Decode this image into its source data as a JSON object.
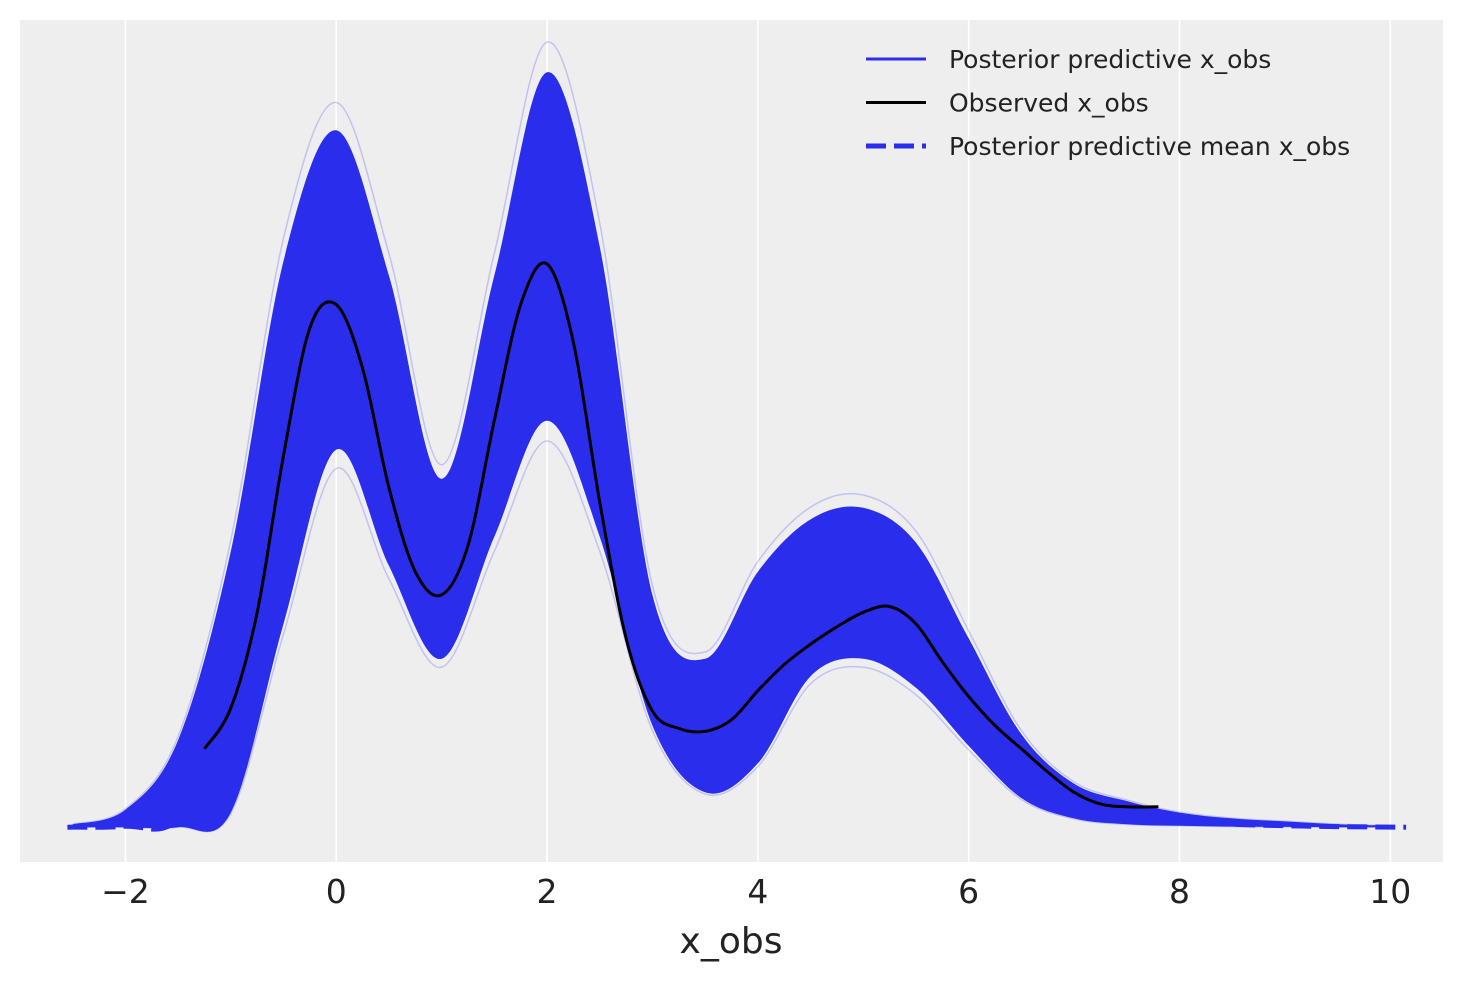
{
  "chart_data": {
    "type": "line",
    "title": "",
    "xlabel": "x_obs",
    "ylabel": "",
    "xlim": [
      -3.0,
      10.5
    ],
    "ylim": [
      -0.012,
      0.278
    ],
    "x_ticks": [
      -2,
      0,
      2,
      4,
      6,
      8,
      10
    ],
    "x_tick_labels": [
      "−2",
      "0",
      "2",
      "4",
      "6",
      "8",
      "10"
    ],
    "y_ticks_visible": false,
    "grid": "vertical",
    "legend_placement": "top-right",
    "colors": {
      "background": "#eeeeee",
      "grid": "#ffffff",
      "posterior_predictive": "#2a2eec",
      "observed": "#000000",
      "posterior_predictive_mean": "#2a2eec"
    },
    "posterior_predictive_draws": {
      "note_hidden": "",
      "alpha": 0.22
    },
    "series": [
      {
        "name": "Posterior predictive x_obs",
        "style": "solid",
        "band_x": [
          -2.5,
          -2.0,
          -1.5,
          -1.0,
          -0.5,
          0.0,
          0.5,
          1.0,
          1.5,
          2.0,
          2.5,
          3.0,
          3.5,
          4.0,
          4.5,
          5.0,
          5.5,
          6.0,
          6.5,
          7.0,
          7.5,
          8.0,
          8.5,
          9.0,
          9.5,
          10.0
        ],
        "band_upper": [
          0.001,
          0.006,
          0.03,
          0.095,
          0.195,
          0.24,
          0.19,
          0.12,
          0.19,
          0.26,
          0.2,
          0.08,
          0.058,
          0.088,
          0.106,
          0.11,
          0.098,
          0.065,
          0.032,
          0.015,
          0.009,
          0.005,
          0.003,
          0.002,
          0.001,
          0.0005
        ],
        "band_lower": [
          0.0,
          0.0,
          0.0,
          0.005,
          0.07,
          0.13,
          0.09,
          0.058,
          0.1,
          0.14,
          0.1,
          0.035,
          0.012,
          0.022,
          0.052,
          0.058,
          0.048,
          0.028,
          0.01,
          0.003,
          0.001,
          0.0005,
          0.0002,
          0.0001,
          0.0,
          0.0
        ]
      },
      {
        "name": "Observed x_obs",
        "style": "solid",
        "x": [
          -1.25,
          -1.0,
          -0.75,
          -0.5,
          -0.25,
          0.0,
          0.25,
          0.5,
          0.75,
          1.0,
          1.25,
          1.5,
          1.75,
          2.0,
          2.25,
          2.5,
          2.75,
          3.0,
          3.25,
          3.5,
          3.75,
          4.0,
          4.25,
          4.5,
          4.75,
          5.0,
          5.25,
          5.5,
          5.75,
          6.0,
          6.25,
          6.5,
          6.75,
          7.0,
          7.25,
          7.5,
          7.8
        ],
        "y": [
          0.027,
          0.041,
          0.074,
          0.128,
          0.172,
          0.18,
          0.158,
          0.117,
          0.088,
          0.08,
          0.097,
          0.14,
          0.18,
          0.194,
          0.167,
          0.112,
          0.065,
          0.04,
          0.034,
          0.033,
          0.037,
          0.047,
          0.056,
          0.063,
          0.069,
          0.074,
          0.076,
          0.07,
          0.057,
          0.045,
          0.035,
          0.027,
          0.019,
          0.012,
          0.008,
          0.007,
          0.007
        ]
      },
      {
        "name": "Posterior predictive mean x_obs",
        "style": "dashed",
        "x": [
          -2.55,
          -2.0,
          -1.5,
          -1.0,
          -0.5,
          0.0,
          0.5,
          1.0,
          1.5,
          2.0,
          2.5,
          3.0,
          3.5,
          4.0,
          4.5,
          5.0,
          5.5,
          6.0,
          6.5,
          7.0,
          7.5,
          8.0,
          8.5,
          9.0,
          9.5,
          10.15
        ],
        "y": [
          0.0,
          0.0003,
          0.003,
          0.04,
          0.125,
          0.183,
          0.14,
          0.085,
          0.138,
          0.198,
          0.145,
          0.055,
          0.032,
          0.053,
          0.078,
          0.082,
          0.072,
          0.045,
          0.02,
          0.008,
          0.004,
          0.002,
          0.001,
          0.0005,
          0.0002,
          0.0
        ]
      }
    ]
  }
}
